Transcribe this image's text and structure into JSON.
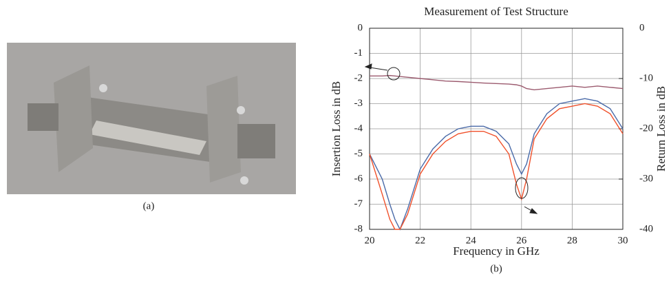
{
  "photo_caption": "(a)",
  "chart_data": {
    "type": "line",
    "title": "Measurement of Test Structure",
    "caption": "(b)",
    "xlabel": "Frequency in GHz",
    "ylabel": "Insertion Loss in dB",
    "y2label": "Return Loss in dB",
    "x": [
      20,
      20.5,
      20.8,
      21,
      21.2,
      21.5,
      22,
      22.5,
      23,
      23.5,
      24,
      24.5,
      25,
      25.5,
      25.8,
      26,
      26.2,
      26.5,
      27,
      27.5,
      28,
      28.5,
      29,
      29.5,
      30
    ],
    "series": [
      {
        "color": "#9b5a6e",
        "axis": "y",
        "values": [
          -1.9,
          -1.9,
          -1.88,
          -1.9,
          -1.92,
          -1.95,
          -2.0,
          -2.05,
          -2.1,
          -2.12,
          -2.15,
          -2.18,
          -2.2,
          -2.22,
          -2.25,
          -2.3,
          -2.4,
          -2.45,
          -2.4,
          -2.35,
          -2.3,
          -2.35,
          -2.3,
          -2.35,
          -2.4
        ]
      },
      {
        "color": "#4a6aa8",
        "axis": "y2",
        "values": [
          -25,
          -30,
          -35,
          -38,
          -40,
          -36,
          -28,
          -24,
          -21.5,
          -20,
          -19.5,
          -19.5,
          -20.5,
          -23,
          -27,
          -29,
          -27,
          -21,
          -17,
          -15,
          -14.5,
          -14,
          -14.5,
          -16,
          -20
        ]
      },
      {
        "color": "#f0502a",
        "axis": "y2",
        "values": [
          -25,
          -33,
          -38,
          -40,
          -40,
          -37,
          -29,
          -25,
          -22.5,
          -21,
          -20.5,
          -20.5,
          -21.5,
          -25,
          -31,
          -34,
          -30,
          -22,
          -18,
          -16,
          -15.5,
          -15,
          -15.5,
          -17,
          -21
        ]
      }
    ],
    "xlim": [
      20,
      30
    ],
    "xticks": [
      20,
      22,
      24,
      26,
      28,
      30
    ],
    "ylim": [
      -8,
      0
    ],
    "yticks": [
      0,
      -1,
      -2,
      -3,
      -4,
      -5,
      -6,
      -7,
      -8
    ],
    "y2lim": [
      -40,
      0
    ],
    "y2ticks": [
      0,
      -10,
      -20,
      -30,
      -40
    ],
    "grid": true
  }
}
